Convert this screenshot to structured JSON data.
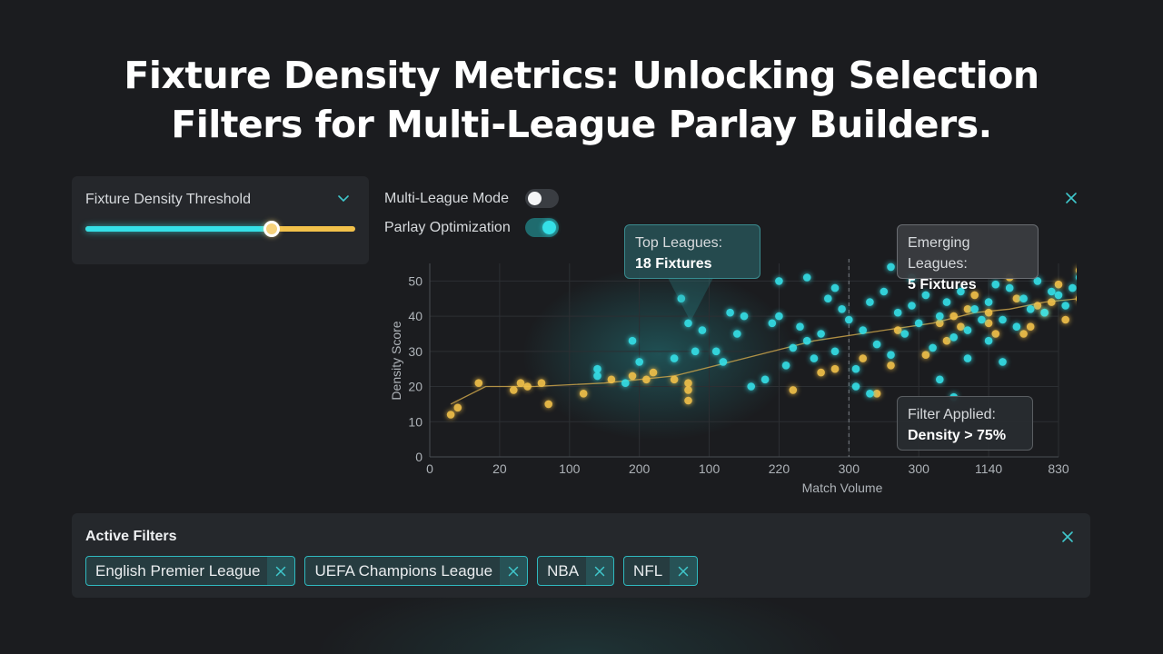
{
  "title": {
    "line1": "Fixture Density Metrics: Unlocking Selection",
    "line2": "Filters for Multi-League Parlay Builders."
  },
  "threshold": {
    "label": "Fixture Density Threshold",
    "value_fraction": 0.69,
    "icon": "chevron-down-icon"
  },
  "toggles": [
    {
      "label": "Multi-League Mode",
      "on": false
    },
    {
      "label": "Parlay Optimization",
      "on": true
    }
  ],
  "callouts": {
    "top_leagues": {
      "line1": "Top Leagues:",
      "line2": "18 Fixtures"
    },
    "emerging": {
      "line1": "Emerging Leagues:",
      "line2": "5 Fixtures"
    },
    "filter": {
      "line1": "Filter Applied:",
      "line2": "Density > 75%"
    }
  },
  "colors": {
    "accent": "#35e0e8",
    "secondary": "#f2c14a",
    "background": "#1b1c1f",
    "card": "#25272b"
  },
  "chart_data": {
    "type": "scatter",
    "xlabel": "Match Volume",
    "ylabel": "Density Score",
    "x_tick_labels": [
      "0",
      "20",
      "100",
      "200",
      "100",
      "220",
      "300",
      "300",
      "1140",
      "830"
    ],
    "y_ticks": [
      0,
      10,
      20,
      30,
      40,
      50
    ],
    "ylim": [
      0,
      55
    ],
    "grid": true,
    "threshold_line_at_tick": "300",
    "series": [
      {
        "color": "#f2c14a",
        "points": [
          [
            0.3,
            12
          ],
          [
            0.4,
            14
          ],
          [
            0.7,
            21
          ],
          [
            1.2,
            19
          ],
          [
            1.3,
            21
          ],
          [
            1.4,
            20
          ],
          [
            1.6,
            21
          ],
          [
            1.7,
            15
          ],
          [
            2.2,
            18
          ],
          [
            2.6,
            22
          ],
          [
            2.9,
            23
          ],
          [
            3.1,
            22
          ],
          [
            3.2,
            24
          ],
          [
            3.5,
            22
          ],
          [
            3.7,
            21
          ],
          [
            3.7,
            19
          ],
          [
            3.7,
            16
          ],
          [
            5.2,
            19
          ],
          [
            5.6,
            24
          ],
          [
            5.8,
            25
          ],
          [
            6.2,
            28
          ],
          [
            6.4,
            18
          ],
          [
            6.6,
            26
          ],
          [
            6.7,
            36
          ],
          [
            7.1,
            29
          ],
          [
            7.3,
            38
          ],
          [
            7.4,
            33
          ],
          [
            7.5,
            40
          ],
          [
            7.6,
            37
          ],
          [
            7.7,
            42
          ],
          [
            7.8,
            46
          ],
          [
            8.0,
            41
          ],
          [
            8.0,
            38
          ],
          [
            8.1,
            35
          ],
          [
            8.3,
            51
          ],
          [
            8.4,
            45
          ],
          [
            8.5,
            35
          ],
          [
            8.6,
            37
          ],
          [
            8.7,
            43
          ],
          [
            8.8,
            41
          ],
          [
            8.9,
            44
          ],
          [
            9.0,
            49
          ],
          [
            9.1,
            39
          ],
          [
            9.3,
            53
          ],
          [
            9.3,
            45
          ],
          [
            9.4,
            43
          ],
          [
            9.6,
            39
          ],
          [
            9.7,
            30
          ],
          [
            9.8,
            48
          ],
          [
            9.9,
            35
          ],
          [
            9.9,
            25
          ]
        ]
      },
      {
        "color": "#35e0e8",
        "points": [
          [
            2.4,
            25
          ],
          [
            2.4,
            23
          ],
          [
            2.8,
            21
          ],
          [
            2.9,
            33
          ],
          [
            3.0,
            27
          ],
          [
            3.5,
            28
          ],
          [
            3.6,
            45
          ],
          [
            3.7,
            38
          ],
          [
            3.8,
            30
          ],
          [
            3.9,
            36
          ],
          [
            4.1,
            30
          ],
          [
            4.2,
            27
          ],
          [
            4.3,
            41
          ],
          [
            4.4,
            35
          ],
          [
            4.5,
            40
          ],
          [
            4.6,
            20
          ],
          [
            4.8,
            22
          ],
          [
            4.9,
            38
          ],
          [
            5.0,
            40
          ],
          [
            5.1,
            26
          ],
          [
            5.2,
            31
          ],
          [
            5.3,
            37
          ],
          [
            5.4,
            33
          ],
          [
            5.5,
            28
          ],
          [
            5.6,
            35
          ],
          [
            5.7,
            45
          ],
          [
            5.8,
            30
          ],
          [
            5.9,
            42
          ],
          [
            6.0,
            39
          ],
          [
            6.1,
            25
          ],
          [
            6.2,
            36
          ],
          [
            6.3,
            44
          ],
          [
            6.4,
            32
          ],
          [
            6.5,
            47
          ],
          [
            6.6,
            29
          ],
          [
            6.7,
            41
          ],
          [
            6.8,
            35
          ],
          [
            6.9,
            43
          ],
          [
            7.0,
            38
          ],
          [
            7.1,
            46
          ],
          [
            7.2,
            31
          ],
          [
            7.3,
            40
          ],
          [
            7.4,
            44
          ],
          [
            7.5,
            34
          ],
          [
            7.6,
            47
          ],
          [
            7.7,
            36
          ],
          [
            7.8,
            42
          ],
          [
            7.9,
            39
          ],
          [
            8.0,
            44
          ],
          [
            8.1,
            49
          ],
          [
            8.2,
            39
          ],
          [
            8.3,
            48
          ],
          [
            8.4,
            37
          ],
          [
            8.5,
            45
          ],
          [
            8.6,
            42
          ],
          [
            8.7,
            50
          ],
          [
            8.8,
            41
          ],
          [
            8.9,
            47
          ],
          [
            9.0,
            46
          ],
          [
            9.1,
            43
          ],
          [
            9.2,
            48
          ],
          [
            9.3,
            51
          ],
          [
            9.4,
            44
          ],
          [
            9.5,
            47
          ],
          [
            9.6,
            54
          ],
          [
            9.7,
            49
          ],
          [
            9.8,
            53
          ],
          [
            9.9,
            43
          ],
          [
            5.0,
            50
          ],
          [
            5.4,
            51
          ],
          [
            5.8,
            48
          ],
          [
            6.1,
            20
          ],
          [
            6.3,
            18
          ],
          [
            6.6,
            54
          ],
          [
            6.9,
            51
          ],
          [
            7.3,
            22
          ],
          [
            7.5,
            17
          ],
          [
            7.7,
            28
          ],
          [
            8.0,
            33
          ],
          [
            8.2,
            27
          ]
        ]
      }
    ],
    "trend_line": [
      [
        0.3,
        15
      ],
      [
        0.8,
        20
      ],
      [
        1.5,
        20
      ],
      [
        2.5,
        21
      ],
      [
        3.5,
        23
      ],
      [
        4.5,
        28
      ],
      [
        5.5,
        33
      ],
      [
        6.5,
        36
      ],
      [
        7.2,
        38
      ],
      [
        7.8,
        41
      ],
      [
        8.3,
        42
      ],
      [
        8.8,
        44
      ],
      [
        9.3,
        45
      ],
      [
        9.9,
        46
      ]
    ]
  },
  "active_filters": {
    "title": "Active Filters",
    "chips": [
      "English Premier League",
      "UEFA Champions League",
      "NBA",
      "NFL"
    ]
  }
}
